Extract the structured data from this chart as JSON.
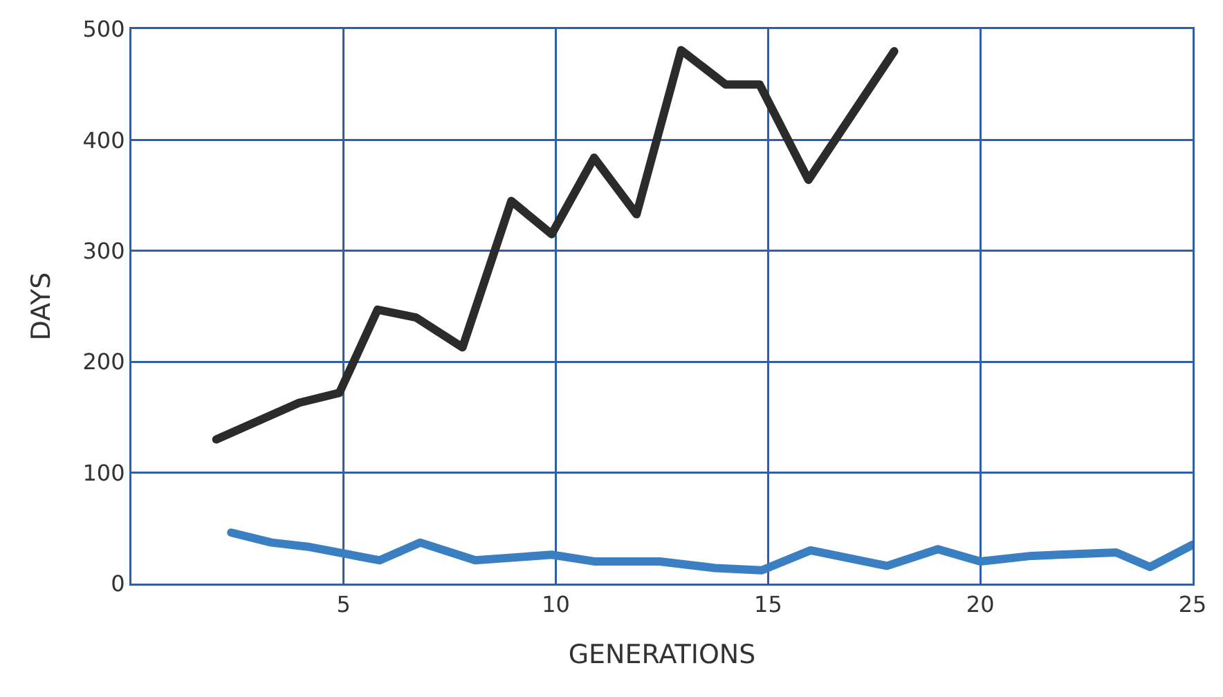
{
  "chart_data": {
    "type": "line",
    "xlabel": "GENERATIONS",
    "ylabel": "DAYS",
    "xlim": [
      0,
      25
    ],
    "xticks": [
      5,
      10,
      15,
      20,
      25
    ],
    "ylim": [
      0,
      500
    ],
    "yticks": [
      0,
      100,
      200,
      300,
      400,
      500
    ],
    "grid": true,
    "series": [
      {
        "color": "#2b2b2b",
        "x": [
          2,
          3.95,
          4.9,
          5.8,
          6.7,
          7.8,
          8.95,
          9.9,
          10.9,
          11.9,
          12.95,
          14,
          14.8,
          15.95,
          17.97
        ],
        "values": [
          130,
          163,
          172,
          247,
          240,
          213,
          345,
          315,
          384,
          333,
          481,
          450,
          450,
          364,
          480
        ]
      },
      {
        "color": "#3a7fc1",
        "x": [
          2.35,
          3.3,
          4.2,
          5.85,
          6.8,
          8.1,
          9.9,
          10.9,
          12.45,
          13.75,
          14.85,
          16,
          17.8,
          19,
          20,
          21.2,
          23.2,
          24,
          25
        ],
        "values": [
          46,
          37,
          33,
          21,
          37,
          21,
          26,
          20,
          20,
          14,
          12,
          30,
          16,
          31,
          20,
          25,
          28,
          15,
          35
        ]
      }
    ]
  }
}
